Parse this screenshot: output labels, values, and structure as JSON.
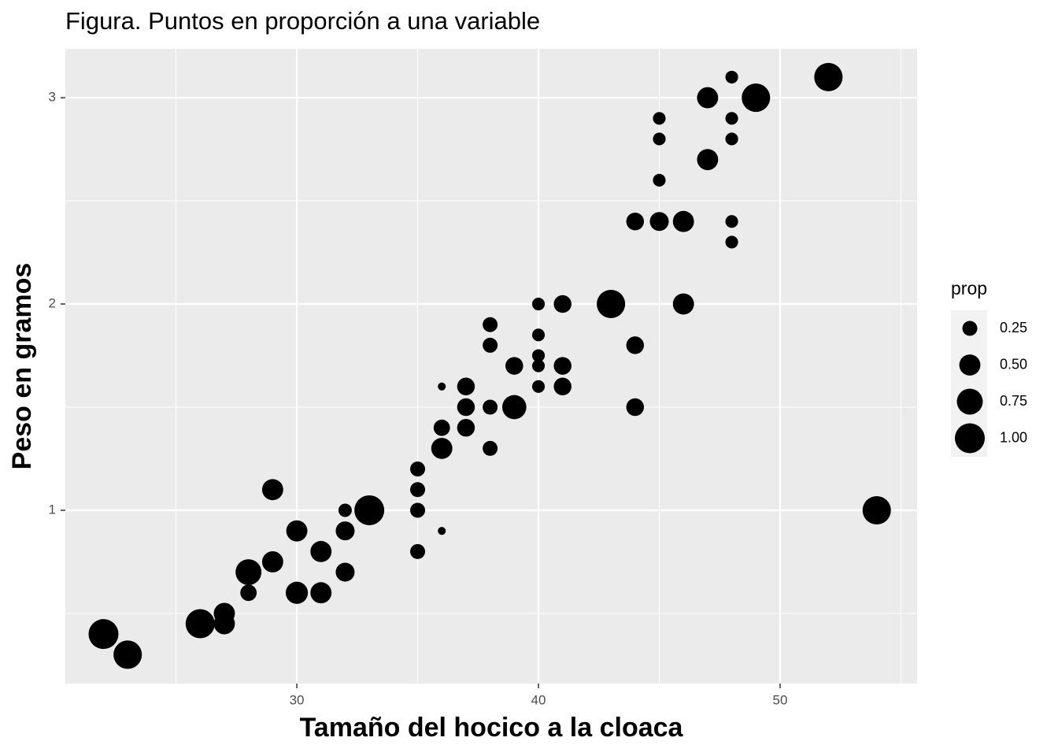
{
  "chart_data": {
    "type": "scatter",
    "title": "Figura. Puntos en proporción a una variable",
    "x_label": "Tamaño del hocico a la cloaca",
    "y_label": "Peso en gramos",
    "x": [
      22,
      23,
      26,
      27,
      27,
      28,
      28,
      29,
      29,
      30,
      30,
      31,
      31,
      32,
      32,
      32,
      33,
      35,
      35,
      35,
      35,
      36,
      36,
      36,
      36,
      37,
      37,
      37,
      38,
      38,
      38,
      38,
      39,
      39,
      40,
      40,
      40,
      40,
      40,
      41,
      41,
      41,
      43,
      44,
      44,
      44,
      45,
      45,
      45,
      45,
      46,
      46,
      47,
      47,
      48,
      48,
      48,
      48,
      48,
      49,
      52,
      54
    ],
    "series": [
      {
        "name": "points",
        "color": "#000000",
        "values": [
          0.4,
          0.3,
          0.45,
          0.5,
          0.45,
          0.7,
          0.6,
          1.1,
          0.75,
          0.9,
          0.6,
          0.8,
          0.6,
          1.0,
          0.9,
          0.7,
          1.0,
          1.2,
          1.1,
          1.0,
          0.8,
          1.6,
          1.4,
          1.3,
          0.9,
          1.6,
          1.5,
          1.4,
          1.9,
          1.8,
          1.5,
          1.3,
          1.7,
          1.5,
          2.0,
          1.85,
          1.75,
          1.7,
          1.6,
          2.0,
          1.7,
          1.6,
          2.0,
          2.4,
          1.8,
          1.5,
          2.9,
          2.8,
          2.6,
          2.4,
          2.4,
          2.0,
          3.0,
          2.7,
          3.1,
          2.9,
          2.8,
          2.4,
          2.3,
          3.0,
          3.1,
          1.0
        ],
        "sizes": [
          1.0,
          0.9,
          0.95,
          0.5,
          0.5,
          0.75,
          0.3,
          0.5,
          0.5,
          0.5,
          0.55,
          0.5,
          0.5,
          0.2,
          0.4,
          0.4,
          1.0,
          0.25,
          0.25,
          0.25,
          0.25,
          0.07,
          0.3,
          0.5,
          0.07,
          0.35,
          0.35,
          0.35,
          0.25,
          0.25,
          0.25,
          0.25,
          0.35,
          0.65,
          0.18,
          0.18,
          0.18,
          0.18,
          0.18,
          0.35,
          0.35,
          0.35,
          0.9,
          0.35,
          0.35,
          0.35,
          0.18,
          0.18,
          0.18,
          0.4,
          0.5,
          0.5,
          0.5,
          0.5,
          0.18,
          0.18,
          0.18,
          0.18,
          0.18,
          0.9,
          0.9,
          0.9
        ]
      }
    ],
    "xlim": [
      20.42,
      55.67
    ],
    "xticks": [
      30,
      40,
      50
    ],
    "xminor": [
      25,
      35,
      45,
      55
    ],
    "ylim": [
      0.16,
      3.237
    ],
    "yticks": [
      1,
      2,
      3
    ],
    "yminor": [
      0.5,
      1.5,
      2.5
    ],
    "grid": true,
    "size_legend": {
      "title": "prop",
      "values": [
        {
          "value": 0.25,
          "label": "0.25"
        },
        {
          "value": 0.5,
          "label": "0.50"
        },
        {
          "value": 0.75,
          "label": "0.75"
        },
        {
          "value": 1.0,
          "label": "1.00"
        }
      ]
    },
    "legend": "right"
  }
}
